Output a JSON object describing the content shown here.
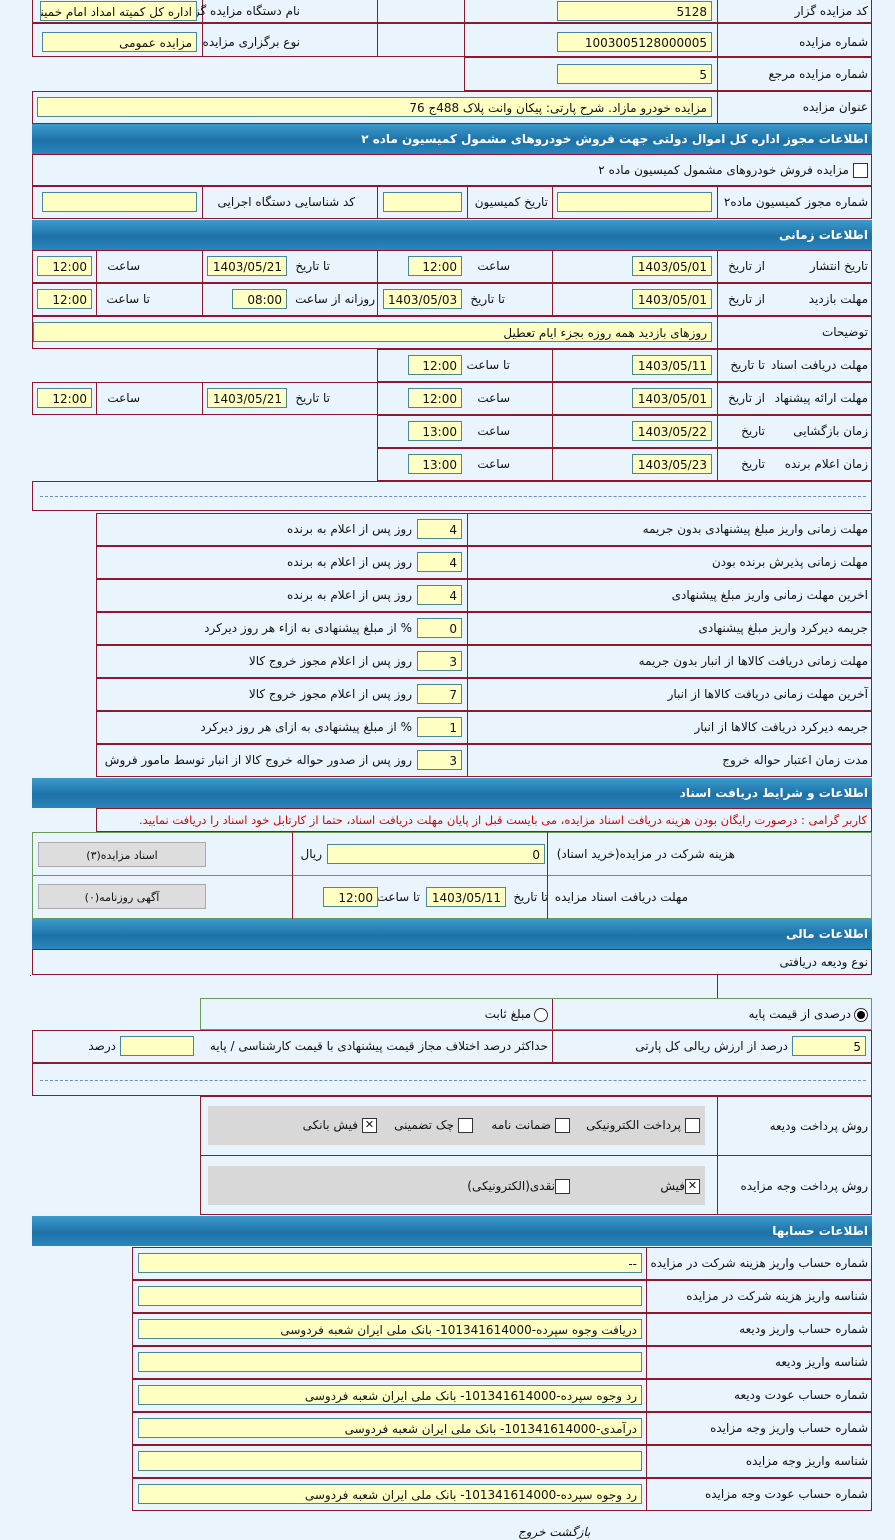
{
  "general": [
    {
      "label": "کد مزایده گزار",
      "value": "5128"
    },
    {
      "label": "نام دستگاه مزایده گزار",
      "value": "اداره کل کمیته امداد امام خمینی"
    },
    {
      "label": "شماره مزایده",
      "value": "1003005128000005"
    },
    {
      "label": "نوع برگزاری مزایده",
      "value": "مزایده عمومی"
    },
    {
      "label": "شماره مزایده مرجع",
      "value": "5"
    },
    {
      "label": "عنوان مزایده",
      "value": "مزایده خودرو مازاد. شرح پارتی: پیکان وانت پلاک 488ج 76"
    }
  ],
  "commission": {
    "header": "اطلاعات مجوز اداره کل اموال دولتی جهت فروش خودروهای مشمول کمیسیون ماده ۲",
    "checkbox_label": "مزایده فروش خودروهای مشمول کمیسیون ماده ۲",
    "checked": false,
    "permit_label": "شماره مجوز کمیسیون ماده۲",
    "permit_value": "",
    "date_label": "تاریخ کمیسیون",
    "date_value": "",
    "code_label": "کد شناسایی دستگاه اجرایی",
    "code_value": ""
  },
  "timing": {
    "header": "اطلاعات زمانی",
    "rows": [
      {
        "label": "تاریخ انتشار",
        "c1": "از تاریخ",
        "v1": "1403/05/01",
        "c2": "ساعت",
        "v2": "12:00",
        "c3": "تا تاریخ",
        "v3": "1403/05/21",
        "c4": "ساعت",
        "v4": "12:00"
      },
      {
        "label": "مهلت بازدید",
        "c1": "از تاریخ",
        "v1": "1403/05/01",
        "c2": "تا تاریخ",
        "v2": "1403/05/03",
        "c3": "روزانه از ساعت",
        "v3": "08:00",
        "c4": "تا ساعت",
        "v4": "12:00"
      },
      {
        "label": "توضیحات",
        "text": "روزهای بازدید همه روزه بجزء ایام تعطیل"
      },
      {
        "label": "مهلت دریافت اسناد",
        "c1": "تا تاریخ",
        "v1": "1403/05/11",
        "c2": "تا ساعت",
        "v2": "12:00"
      },
      {
        "label": "مهلت ارائه پیشنهاد",
        "c1": "از تاریخ",
        "v1": "1403/05/01",
        "c2": "ساعت",
        "v2": "12:00",
        "c3": "تا تاریخ",
        "v3": "1403/05/21",
        "c4": "ساعت",
        "v4": "12:00"
      },
      {
        "label": "زمان بازگشایی",
        "c1": "تاریخ",
        "v1": "1403/05/22",
        "c2": "ساعت",
        "v2": "13:00"
      },
      {
        "label": "زمان اعلام برنده",
        "c1": "تاریخ",
        "v1": "1403/05/23",
        "c2": "ساعت",
        "v2": "13:00"
      }
    ]
  },
  "deadlines": [
    {
      "label": "مهلت زمانی واریز مبلغ پیشنهادی بدون جریمه",
      "value": "4",
      "unit": "روز پس از اعلام به برنده"
    },
    {
      "label": "مهلت زمانی پذیرش برنده بودن",
      "value": "4",
      "unit": "روز پس از اعلام به برنده"
    },
    {
      "label": "اخرین مهلت زمانی واریز مبلغ پیشنهادی",
      "value": "4",
      "unit": "روز پس از اعلام به برنده"
    },
    {
      "label": "جریمه دیرکرد واریز مبلغ پیشنهادی",
      "value": "0",
      "unit": "% از مبلغ پیشنهادی به ازاء هر روز دیرکرد"
    },
    {
      "label": "مهلت زمانی دریافت کالاها از انبار بدون جریمه",
      "value": "3",
      "unit": "روز پس از اعلام مجوز خروج کالا"
    },
    {
      "label": "آخرین مهلت زمانی دریافت کالاها از انبار",
      "value": "7",
      "unit": "روز پس از اعلام مجوز خروج کالا"
    },
    {
      "label": "جریمه دیرکرد دریافت کالاها از انبار",
      "value": "1",
      "unit": "% از مبلغ پیشنهادی به ازای هر روز دیرکرد"
    },
    {
      "label": "مدت زمان اعتبار حواله خروج",
      "value": "3",
      "unit": "روز پس از صدور حواله خروج کالا از انبار توسط مامور فروش"
    }
  ],
  "documents": {
    "header": "اطلاعات و شرایط دریافت اسناد",
    "notice": "کاربر گرامی : درصورت رایگان بودن هزینه دریافت اسناد مزایده، می بایست قبل از پایان مهلت دریافت اسناد، حتما از کارتابل خود اسناد را دریافت نمایید.",
    "fee_label": "هزینه شرکت در مزایده(خرید اسناد)",
    "fee_value": "0",
    "fee_unit": "ریال",
    "docs_button": "اسناد مزایده(۳)",
    "deadline_label": "مهلت دریافت اسناد مزایده",
    "to_date_label": "تا تاریخ",
    "to_date": "1403/05/11",
    "to_time_label": "تا ساعت",
    "to_time": "12:00",
    "ads_button": "آگهی روزنامه(۰)"
  },
  "financial": {
    "header": "اطلاعات مالی",
    "deposit_type_label": "نوع ودیعه دریافتی",
    "radio_percent": "درصدی از قیمت پایه",
    "radio_fixed": "مبلغ ثابت",
    "selected": "percent",
    "percent_value": "5",
    "percent_unit": "درصد از ارزش ریالی کل پارتی",
    "max_diff_label": "حداکثر درصد اختلاف مجاز قیمت پیشنهادی با قیمت کارشناسی / پایه",
    "max_diff_value": "",
    "max_diff_unit": "درصد",
    "deposit_method_label": "روش پرداخت ودیعه",
    "deposit_methods": [
      {
        "label": "پرداخت الکترونیکی",
        "checked": false
      },
      {
        "label": "ضمانت نامه",
        "checked": false
      },
      {
        "label": "چک تضمینی",
        "checked": false
      },
      {
        "label": "فیش بانکی",
        "checked": true
      }
    ],
    "payment_method_label": "روش پرداخت وجه مزایده",
    "payment_methods": [
      {
        "label": "فیش",
        "checked": true
      },
      {
        "label": "نقدی(الکترونیکی)",
        "checked": false
      }
    ]
  },
  "accounts": {
    "header": "اطلاعات حسابها",
    "rows": [
      {
        "label": "شماره حساب واریز هزینه شرکت در مزایده",
        "value": "--"
      },
      {
        "label": "شناسه واریز هزینه شرکت در مزایده",
        "value": ""
      },
      {
        "label": "شماره حساب واریز ودیعه",
        "value": "دریافت وجوه سپرده-101341614000- بانک ملی ایران شعبه فردوسی"
      },
      {
        "label": "شناسه واریز ودیعه",
        "value": ""
      },
      {
        "label": "شماره حساب عودت ودیعه",
        "value": "رد وجوه سپرده-101341614000- بانک ملی ایران شعبه فردوسی"
      },
      {
        "label": "شماره حساب واریز وجه مزایده",
        "value": "درآمدی-101341614000- بانک ملی ایران شعبه فردوسی"
      },
      {
        "label": "شناسه واریز وجه مزایده",
        "value": ""
      },
      {
        "label": "شماره حساب عودت وجه مزایده",
        "value": "رد وجوه سپرده-101341614000- بانک ملی ایران شعبه فردوسی"
      }
    ]
  },
  "footer": {
    "back_exit": "بازگشت خروج"
  },
  "colors": {
    "header": "#1d72a8",
    "input": "#ffffc4",
    "border": "#8b1a2e",
    "notice": "#dd0000"
  }
}
